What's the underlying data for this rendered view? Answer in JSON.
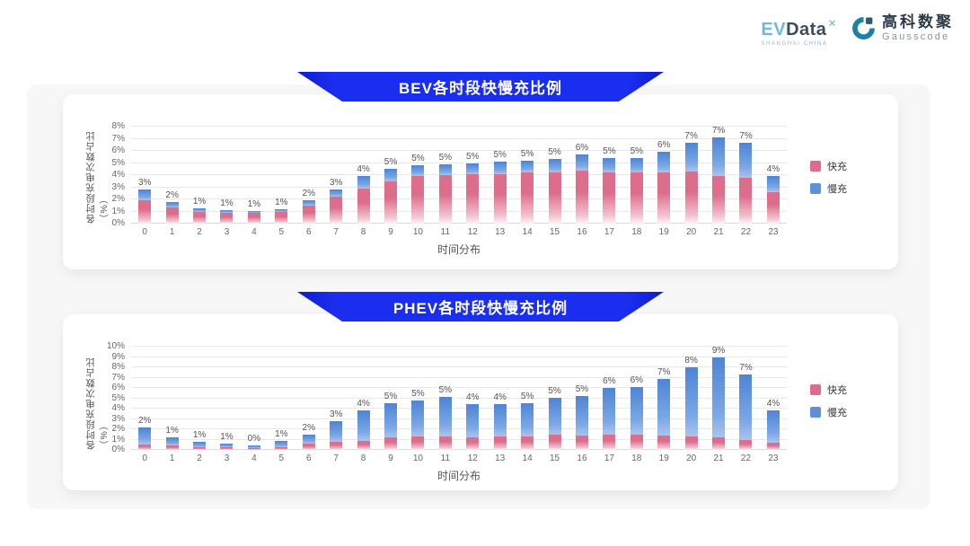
{
  "logo": {
    "evdata_ev": "EV",
    "evdata_data": "Data",
    "evdata_sup": "✕",
    "evdata_sub_shanghai": "SHANGHAI",
    "evdata_sub_china": "CHINA",
    "partner_cn": "高科数聚",
    "partner_en": "Gausscode"
  },
  "colors": {
    "banner_blue": "#1a2ef0",
    "fast_pink": "#dd6e8b",
    "slow_blue": "#5e90da",
    "panel_bg": "#f7f7f8"
  },
  "chart_data": [
    {
      "type": "bar",
      "stacked": true,
      "title": "BEV各时段快慢充比例",
      "ylabel": "各时段充电次数占比（%）",
      "xlabel": "时间分布",
      "ymax": 8,
      "grid": true,
      "legend_position": "right",
      "yticks": [
        "0%",
        "1%",
        "2%",
        "3%",
        "4%",
        "5%",
        "6%",
        "7%",
        "8%"
      ],
      "categories": [
        "0",
        "1",
        "2",
        "3",
        "4",
        "5",
        "6",
        "7",
        "8",
        "9",
        "10",
        "11",
        "12",
        "13",
        "14",
        "15",
        "16",
        "17",
        "18",
        "19",
        "20",
        "21",
        "22",
        "23"
      ],
      "total_labels": [
        "3%",
        "2%",
        "1%",
        "1%",
        "1%",
        "1%",
        "2%",
        "3%",
        "4%",
        "5%",
        "5%",
        "5%",
        "5%",
        "5%",
        "5%",
        "5%",
        "6%",
        "5%",
        "5%",
        "6%",
        "7%",
        "7%",
        "7%",
        "4%"
      ],
      "series": [
        {
          "name": "快充",
          "color": "#dd6e8b",
          "values": [
            1.9,
            1.3,
            1.0,
            0.9,
            0.9,
            1.0,
            1.5,
            2.2,
            2.9,
            3.5,
            3.9,
            4.0,
            4.1,
            4.1,
            4.2,
            4.2,
            4.4,
            4.2,
            4.2,
            4.2,
            4.3,
            3.9,
            3.8,
            2.6
          ]
        },
        {
          "name": "慢充",
          "color": "#5e90da",
          "values": [
            0.9,
            0.5,
            0.3,
            0.2,
            0.1,
            0.2,
            0.4,
            0.6,
            1.0,
            1.0,
            0.9,
            0.9,
            0.9,
            1.0,
            1.0,
            1.1,
            1.3,
            1.2,
            1.2,
            1.7,
            2.4,
            3.2,
            2.9,
            1.3
          ]
        }
      ]
    },
    {
      "type": "bar",
      "stacked": true,
      "title": "PHEV各时段快慢充比例",
      "ylabel": "各时段充电次数占比（%）",
      "xlabel": "时间分布",
      "ymax": 10,
      "grid": true,
      "legend_position": "right",
      "yticks": [
        "0%",
        "1%",
        "2%",
        "3%",
        "4%",
        "5%",
        "6%",
        "7%",
        "8%",
        "9%",
        "10%"
      ],
      "categories": [
        "0",
        "1",
        "2",
        "3",
        "4",
        "5",
        "6",
        "7",
        "8",
        "9",
        "10",
        "11",
        "12",
        "13",
        "14",
        "15",
        "16",
        "17",
        "18",
        "19",
        "20",
        "21",
        "22",
        "23"
      ],
      "total_labels": [
        "2%",
        "1%",
        "1%",
        "1%",
        "0%",
        "1%",
        "2%",
        "3%",
        "4%",
        "5%",
        "5%",
        "5%",
        "4%",
        "4%",
        "5%",
        "5%",
        "5%",
        "6%",
        "6%",
        "7%",
        "8%",
        "9%",
        "7%",
        "4%"
      ],
      "series": [
        {
          "name": "快充",
          "color": "#dd6e8b",
          "values": [
            0.5,
            0.4,
            0.3,
            0.25,
            0.2,
            0.3,
            0.6,
            0.8,
            0.9,
            1.2,
            1.3,
            1.3,
            1.2,
            1.3,
            1.3,
            1.5,
            1.4,
            1.5,
            1.5,
            1.4,
            1.3,
            1.2,
            1.0,
            0.7
          ]
        },
        {
          "name": "慢充",
          "color": "#5e90da",
          "values": [
            1.7,
            0.8,
            0.5,
            0.35,
            0.25,
            0.55,
            0.9,
            2.0,
            2.9,
            3.3,
            3.5,
            3.8,
            3.2,
            3.1,
            3.2,
            3.5,
            3.8,
            4.5,
            4.6,
            5.5,
            6.7,
            7.9,
            6.3,
            3.1
          ]
        }
      ]
    }
  ]
}
